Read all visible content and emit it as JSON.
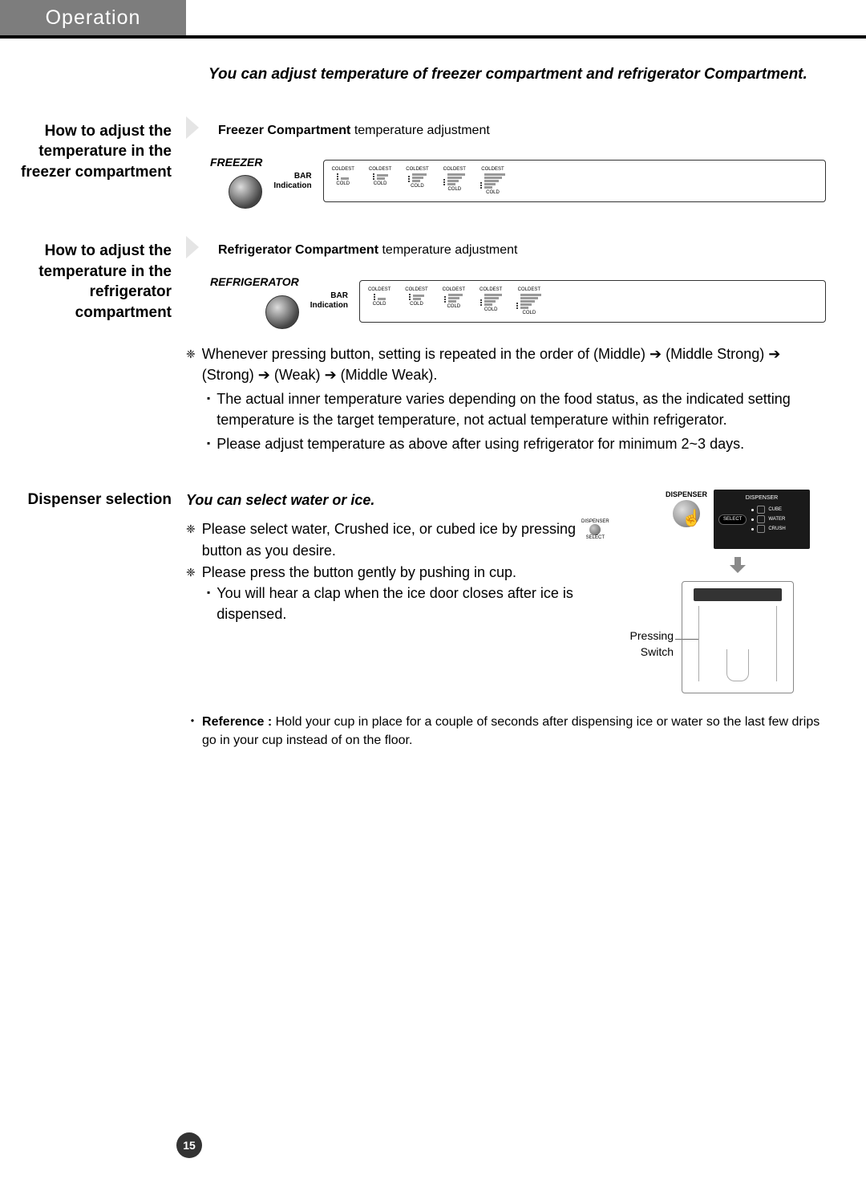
{
  "header": {
    "title": "Operation"
  },
  "intro": "You can adjust temperature of freezer compartment and refrigerator Compartment.",
  "freezer": {
    "sideLabel": "How to adjust the temperature in the freezer compartment",
    "headBold": "Freezer Compartment",
    "headRest": " temperature adjustment",
    "panelLabel": "FREEZER",
    "barLabel1": "BAR",
    "barLabel2": "Indication",
    "top": "COLDEST",
    "bottom": "COLD",
    "stairs": [
      1,
      2,
      3,
      4,
      5
    ]
  },
  "fridge": {
    "sideLabel": "How to adjust the temperature in the refrigerator compartment",
    "headBold": "Refrigerator Compartment",
    "headRest": " temperature adjustment",
    "panelLabel": "REFRIGERATOR",
    "barLabel1": "BAR",
    "barLabel2": "Indication",
    "top": "COLDEST",
    "bottom": "COLD",
    "stairs": [
      1,
      2,
      3,
      4,
      5
    ]
  },
  "notes": {
    "star1a": "Whenever pressing button, setting is repeated in the order of (Middle) ",
    "star1b": " (Middle Strong) ",
    "star1c": "  (Strong) ",
    "star1d": "  (Weak) ",
    "star1e": "  (Middle Weak).",
    "sq1": "The actual inner temperature varies depending on the food status, as the indicated setting temperature is the target temperature, not actual temperature within refrigerator.",
    "sq2": "Please adjust temperature as above after using refrigerator for minimum 2~3 days."
  },
  "dispenser": {
    "sideLabel": "Dispenser selection",
    "itHead": "You can select water or ice.",
    "star1a": "Please select water, Crushed ice, or cubed ice by pressing ",
    "star1b": " button as you desire.",
    "inlineIconTop": "DISPENSER",
    "inlineIconBottom": "SELECT",
    "star2": "Please press the button gently by pushing in cup.",
    "sq1": "You will hear a clap when the ice door closes after ice is dispensed.",
    "figLabel": "DISPENSER",
    "screenTitle": "DISPENSER",
    "selectLabel": "SELECT",
    "opts": [
      "CUBE",
      "WATER",
      "CRUSH"
    ],
    "pressing": "Pressing Switch"
  },
  "reference": {
    "lead": "Reference :",
    "body": " Hold your cup in place for a couple of seconds after dispensing ice or water so the last few drips go in your cup instead of on the floor."
  },
  "pageNum": "15",
  "colors": {
    "headerTab": "#7d7d7d",
    "arrow": "#8a8a8a"
  }
}
